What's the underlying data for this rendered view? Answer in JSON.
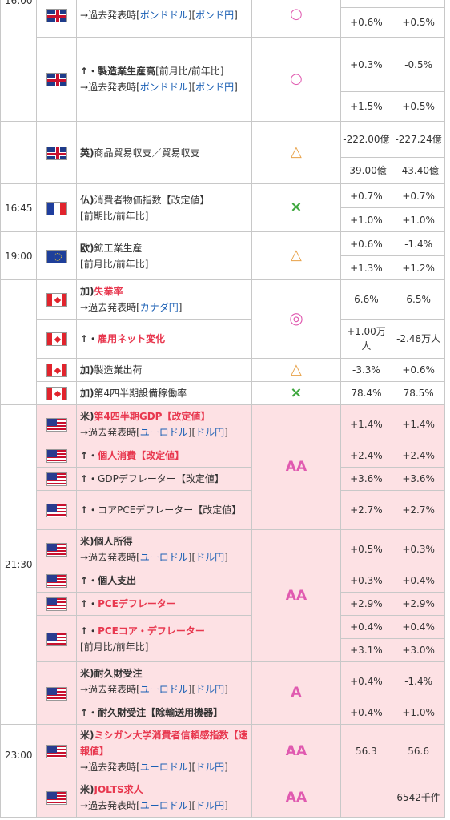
{
  "rows": [
    {
      "time": "",
      "flag": "uk",
      "name": [
        {
          "t": "→過去発表時[",
          "c": ""
        },
        {
          "t": "ポンドドル",
          "c": "blue"
        },
        {
          "t": "][",
          "c": ""
        },
        {
          "t": "ポンド円",
          "c": "blue"
        },
        {
          "t": "]",
          "c": ""
        }
      ],
      "mark": "○",
      "mark_class": "circle",
      "v1": [
        "+0.6%"
      ],
      "v2": [
        "+0.5%"
      ]
    },
    {
      "time": "16:00",
      "flag": "uk",
      "name": [
        {
          "t": "↑・製造業生産高",
          "c": "bold"
        },
        {
          "t": "[前月比/前年比]",
          "c": ""
        },
        {
          "t": "\n→過去発表時[",
          "c": ""
        },
        {
          "t": "ポンドドル",
          "c": "blue"
        },
        {
          "t": "][",
          "c": ""
        },
        {
          "t": "ポンド円",
          "c": "blue"
        },
        {
          "t": "]",
          "c": ""
        }
      ],
      "mark": "○",
      "mark_class": "circle",
      "v1": [
        "+0.3%",
        "+1.5%"
      ],
      "v2": [
        "-0.5%",
        "+0.5%"
      ]
    },
    {
      "time": "",
      "flag": "uk",
      "name": [
        {
          "t": "英)",
          "c": "bold"
        },
        {
          "t": "商品貿易収支／貿易収支",
          "c": ""
        }
      ],
      "mark": "△",
      "mark_class": "tri",
      "v1": [
        "-222.00億",
        "-39.00億"
      ],
      "v2": [
        "-227.24億",
        "-43.40億"
      ]
    },
    {
      "time": "16:45",
      "flag": "fr",
      "name": [
        {
          "t": "仏)",
          "c": "bold"
        },
        {
          "t": "消費者物価指数【改定値】\n[前期比/前年比]",
          "c": ""
        }
      ],
      "mark": "×",
      "mark_class": "cross",
      "v1": [
        "+0.7%",
        "+1.0%"
      ],
      "v2": [
        "+0.7%",
        "+1.0%"
      ]
    },
    {
      "time": "19:00",
      "flag": "eu",
      "name": [
        {
          "t": "欧)",
          "c": "bold"
        },
        {
          "t": "鉱工業生産\n[前月比/前年比]",
          "c": ""
        }
      ],
      "mark": "△",
      "mark_class": "tri",
      "v1": [
        "+0.6%",
        "+1.3%"
      ],
      "v2": [
        "-1.4%",
        "+1.2%"
      ]
    },
    {
      "time": "",
      "flag": "ca",
      "name": [
        {
          "t": "加)",
          "c": "bold"
        },
        {
          "t": "失業率",
          "c": "red"
        },
        {
          "t": "\n→過去発表時[",
          "c": ""
        },
        {
          "t": "カナダ円",
          "c": "blue"
        },
        {
          "t": "]",
          "c": ""
        }
      ],
      "mark": "◎",
      "mark_class": "dcircle",
      "v1": [
        "6.6%"
      ],
      "v2": [
        "6.5%"
      ]
    },
    {
      "time": "",
      "flag": "ca",
      "name": [
        {
          "t": "↑・",
          "c": "bold"
        },
        {
          "t": "雇用ネット変化",
          "c": "red"
        }
      ],
      "mark": "",
      "mark_class": "",
      "v1": [
        "+1.00万人"
      ],
      "v2": [
        "-2.48万人"
      ]
    },
    {
      "time": "",
      "flag": "ca",
      "name": [
        {
          "t": "加)",
          "c": "bold"
        },
        {
          "t": "製造業出荷",
          "c": ""
        }
      ],
      "mark": "△",
      "mark_class": "tri",
      "v1": [
        "-3.3%"
      ],
      "v2": [
        "+0.6%"
      ]
    },
    {
      "time": "",
      "flag": "ca",
      "name": [
        {
          "t": "加)",
          "c": "bold"
        },
        {
          "t": "第4四半期設備稼働率",
          "c": ""
        }
      ],
      "mark": "×",
      "mark_class": "cross",
      "v1": [
        "78.4%"
      ],
      "v2": [
        "78.5%"
      ]
    },
    {
      "time": "",
      "flag": "us",
      "name": [
        {
          "t": "米)",
          "c": "bold"
        },
        {
          "t": "第4四半期GDP【改定値】",
          "c": "red"
        },
        {
          "t": "\n→過去発表時[",
          "c": ""
        },
        {
          "t": "ユーロドル",
          "c": "blue"
        },
        {
          "t": "][",
          "c": ""
        },
        {
          "t": "ドル円",
          "c": "blue"
        },
        {
          "t": "]",
          "c": ""
        }
      ],
      "mark": "",
      "mark_class": "",
      "v1": [
        "+1.4%"
      ],
      "v2": [
        "+1.4%"
      ]
    },
    {
      "time": "",
      "flag": "us",
      "name": [
        {
          "t": "↑・",
          "c": "bold"
        },
        {
          "t": "個人消費【改定値】",
          "c": "red"
        }
      ],
      "mark": "AA",
      "mark_class": "aa",
      "v1": [
        "+2.4%"
      ],
      "v2": [
        "+2.4%"
      ]
    },
    {
      "time": "",
      "flag": "us",
      "name": [
        {
          "t": "↑・",
          "c": "bold"
        },
        {
          "t": "GDPデフレーター【改定値】",
          "c": ""
        }
      ],
      "mark": "",
      "mark_class": "",
      "v1": [
        "+3.6%"
      ],
      "v2": [
        "+3.6%"
      ]
    },
    {
      "time": "",
      "flag": "us",
      "name": [
        {
          "t": "↑・",
          "c": "bold"
        },
        {
          "t": "コアPCEデフレーター【改定値】",
          "c": ""
        }
      ],
      "mark": "",
      "mark_class": "",
      "v1": [
        "+2.7%"
      ],
      "v2": [
        "+2.7%"
      ]
    },
    {
      "time": "21:30",
      "flag": "us",
      "name": [
        {
          "t": "米)",
          "c": "bold"
        },
        {
          "t": "個人所得",
          "c": "bold"
        },
        {
          "t": "\n→過去発表時[",
          "c": ""
        },
        {
          "t": "ユーロドル",
          "c": "blue"
        },
        {
          "t": "][",
          "c": ""
        },
        {
          "t": "ドル円",
          "c": "blue"
        },
        {
          "t": "]",
          "c": ""
        }
      ],
      "mark": "",
      "mark_class": "",
      "v1": [
        "+0.5%"
      ],
      "v2": [
        "+0.3%"
      ]
    },
    {
      "time": "",
      "flag": "us",
      "name": [
        {
          "t": "↑・",
          "c": "bold"
        },
        {
          "t": "個人支出",
          "c": "bold"
        }
      ],
      "mark": "AA",
      "mark_class": "aa",
      "v1": [
        "+0.3%"
      ],
      "v2": [
        "+0.4%"
      ]
    },
    {
      "time": "",
      "flag": "us",
      "name": [
        {
          "t": "↑・",
          "c": "bold"
        },
        {
          "t": "PCEデフレーター",
          "c": "red"
        }
      ],
      "mark": "",
      "mark_class": "",
      "v1": [
        "+2.9%"
      ],
      "v2": [
        "+2.9%"
      ]
    },
    {
      "time": "",
      "flag": "us",
      "name": [
        {
          "t": "↑・",
          "c": "bold"
        },
        {
          "t": "PCEコア・デフレーター",
          "c": "red"
        },
        {
          "t": "\n[前月比/前年比]",
          "c": ""
        }
      ],
      "mark": "",
      "mark_class": "",
      "v1": [
        "+0.4%",
        "+3.1%"
      ],
      "v2": [
        "+0.4%",
        "+3.0%"
      ]
    },
    {
      "time": "",
      "flag": "us",
      "name": [
        {
          "t": "米)",
          "c": "bold"
        },
        {
          "t": "耐久財受注",
          "c": "bold"
        },
        {
          "t": "\n→過去発表時[",
          "c": ""
        },
        {
          "t": "ユーロドル",
          "c": "blue"
        },
        {
          "t": "][",
          "c": ""
        },
        {
          "t": "ドル円",
          "c": "blue"
        },
        {
          "t": "]",
          "c": ""
        }
      ],
      "mark": "A",
      "mark_class": "aa",
      "v1": [
        "+0.4%"
      ],
      "v2": [
        "-1.4%"
      ]
    },
    {
      "time": "",
      "flag": "us",
      "name": [
        {
          "t": "↑・耐久財受注【除輸送用機器】",
          "c": "bold"
        }
      ],
      "mark": "",
      "mark_class": "",
      "v1": [
        "+0.4%"
      ],
      "v2": [
        "+1.0%"
      ]
    },
    {
      "time": "23:00",
      "flag": "us",
      "name": [
        {
          "t": "米)",
          "c": "bold"
        },
        {
          "t": "ミシガン大学消費者信頼感指数【速報値】",
          "c": "red"
        },
        {
          "t": "\n→過去発表時[",
          "c": ""
        },
        {
          "t": "ユーロドル",
          "c": "blue"
        },
        {
          "t": "][",
          "c": ""
        },
        {
          "t": "ドル円",
          "c": "blue"
        },
        {
          "t": "]",
          "c": ""
        }
      ],
      "mark": "AA",
      "mark_class": "aa",
      "v1": [
        "56.3"
      ],
      "v2": [
        "56.6"
      ]
    },
    {
      "time": "",
      "flag": "us",
      "name": [
        {
          "t": "米)",
          "c": "bold"
        },
        {
          "t": "JOLTS求人",
          "c": "red"
        },
        {
          "t": "\n→過去発表時[",
          "c": ""
        },
        {
          "t": "ユーロドル",
          "c": "blue"
        },
        {
          "t": "][",
          "c": ""
        },
        {
          "t": "ドル円",
          "c": "blue"
        },
        {
          "t": "]",
          "c": ""
        }
      ],
      "mark": "AA",
      "mark_class": "aa",
      "v1": [
        "-"
      ],
      "v2": [
        "6542千件"
      ]
    }
  ]
}
